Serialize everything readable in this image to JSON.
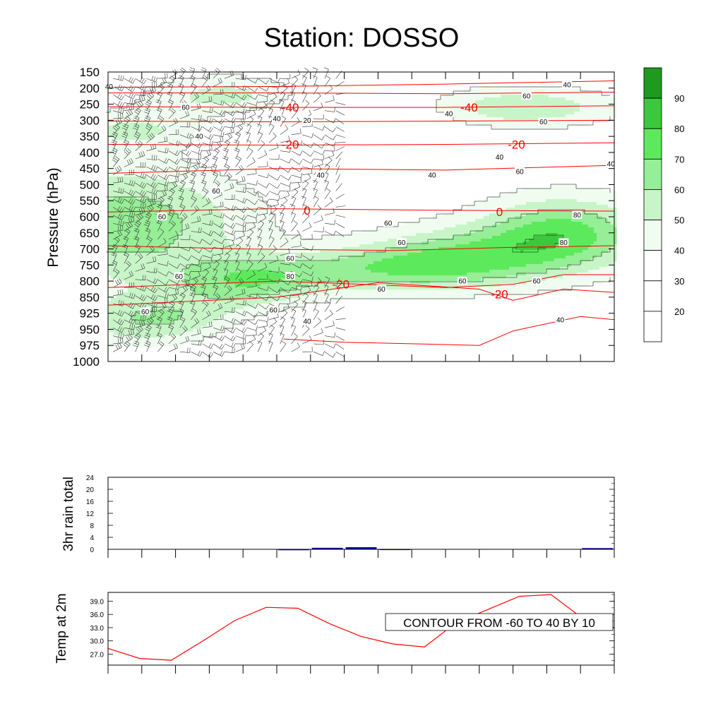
{
  "title": "Station: DOSSO",
  "colors": {
    "fill_levels": [
      "#ffffff",
      "#ffffff",
      "#ffffff",
      "#f0fcf0",
      "#c8f5c8",
      "#96ee96",
      "#5cea5c",
      "#3cc83c",
      "#1e9a1e"
    ],
    "rh_line": "#000000",
    "temp_line": "#ff0000",
    "rain_bar": "#0000a0",
    "t2m_line": "#ff0000"
  },
  "chart_data": [
    {
      "id": "time_height",
      "type": "heatmap",
      "title": "Station: DOSSO",
      "ylabel": "Pressure (hPa)",
      "xlabel": "",
      "y_ticks": [
        "150",
        "200",
        "250",
        "300",
        "350",
        "400",
        "450",
        "500",
        "550",
        "600",
        "650",
        "700",
        "750",
        "800",
        "850",
        "925",
        "950",
        "975",
        "1000"
      ],
      "n_x_ticks": 16,
      "colorbar": {
        "labels": [
          "90",
          "80",
          "70",
          "60",
          "50",
          "40",
          "30",
          "20"
        ],
        "levels": [
          10,
          20,
          30,
          40,
          50,
          60,
          70,
          80,
          90
        ]
      },
      "rh_contour_labels": [
        {
          "text": "40",
          "t": 0.03,
          "lev": 0.9
        },
        {
          "text": "60",
          "t": 2.3,
          "lev": 2.2
        },
        {
          "text": "40",
          "t": 5.0,
          "lev": 2.9
        },
        {
          "text": "20",
          "t": 5.9,
          "lev": 3.0
        },
        {
          "text": "40",
          "t": 2.7,
          "lev": 4.0
        },
        {
          "text": "40",
          "t": 6.3,
          "lev": 6.4
        },
        {
          "text": "40",
          "t": 9.6,
          "lev": 6.4
        },
        {
          "text": "60",
          "t": 3.2,
          "lev": 7.4
        },
        {
          "text": "60",
          "t": 1.6,
          "lev": 9.0
        },
        {
          "text": "60",
          "t": 8.3,
          "lev": 9.4
        },
        {
          "text": "60",
          "t": 5.4,
          "lev": 11.6
        },
        {
          "text": "80",
          "t": 5.4,
          "lev": 12.7
        },
        {
          "text": "60",
          "t": 2.1,
          "lev": 12.7
        },
        {
          "text": "60",
          "t": 8.7,
          "lev": 10.6
        },
        {
          "text": "80",
          "t": 13.9,
          "lev": 8.9
        },
        {
          "text": "80",
          "t": 13.5,
          "lev": 10.6
        },
        {
          "text": "60",
          "t": 10.5,
          "lev": 13.0
        },
        {
          "text": "60",
          "t": 8.1,
          "lev": 13.5
        },
        {
          "text": "60",
          "t": 4.9,
          "lev": 14.8
        },
        {
          "text": "60",
          "t": 1.1,
          "lev": 14.9
        },
        {
          "text": "40",
          "t": 5.9,
          "lev": 15.5
        },
        {
          "text": "40",
          "t": 13.4,
          "lev": 15.4
        },
        {
          "text": "60",
          "t": 12.7,
          "lev": 13.0
        },
        {
          "text": "60",
          "t": 12.2,
          "lev": 6.2
        },
        {
          "text": "60",
          "t": 12.9,
          "lev": 3.1
        },
        {
          "text": "60",
          "t": 12.4,
          "lev": 1.5
        },
        {
          "text": "40",
          "t": 13.6,
          "lev": 0.8
        },
        {
          "text": "40",
          "t": 11.6,
          "lev": 5.3
        },
        {
          "text": "40",
          "t": 14.9,
          "lev": 5.7
        },
        {
          "text": "40",
          "t": 10.1,
          "lev": 2.6
        }
      ],
      "temp_contour_labels": [
        {
          "text": "-40",
          "t": 5.4,
          "lev": 2.2
        },
        {
          "text": "-40",
          "t": 10.7,
          "lev": 2.2
        },
        {
          "text": "-20",
          "t": 5.4,
          "lev": 4.5
        },
        {
          "text": "-20",
          "t": 12.1,
          "lev": 4.5
        },
        {
          "text": "0",
          "t": 5.9,
          "lev": 8.6
        },
        {
          "text": "0",
          "t": 11.6,
          "lev": 8.7
        },
        {
          "text": "-20",
          "t": 6.9,
          "lev": 13.2
        },
        {
          "text": "-20",
          "t": 11.6,
          "lev": 13.8
        }
      ]
    },
    {
      "id": "rain",
      "type": "bar",
      "ylabel": "3hr rain total",
      "y_ticks": [
        "0",
        "4",
        "8",
        "12",
        "16",
        "20",
        "24"
      ],
      "ylim": [
        0,
        24
      ],
      "n_x_ticks": 16,
      "values": [
        0,
        0,
        0,
        0,
        0,
        0.05,
        0.5,
        0.7,
        0.1,
        0,
        0,
        0,
        0,
        0,
        0.4,
        0
      ]
    },
    {
      "id": "t2m",
      "type": "line",
      "ylabel": "Temp at 2m",
      "y_ticks": [
        "27.0",
        "30.0",
        "33.0",
        "36.0",
        "39.0"
      ],
      "ylim": [
        24.5,
        41.0
      ],
      "n_x_ticks": 16,
      "values": [
        28.3,
        26.0,
        25.6,
        30.0,
        34.6,
        37.6,
        37.4,
        33.9,
        31.0,
        29.3,
        28.6,
        34.1,
        37.1,
        40.1,
        40.5,
        35.1,
        33.0
      ],
      "annotation": "CONTOUR FROM -60 TO 40 BY 10"
    }
  ]
}
